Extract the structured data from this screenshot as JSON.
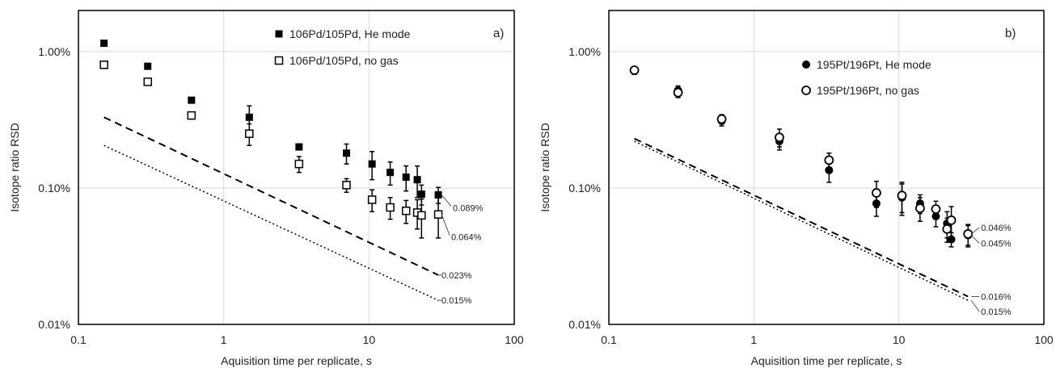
{
  "chart_data": [
    {
      "type": "scatter",
      "panel_label": "a)",
      "xlabel": "Aquisition time per replicate, s",
      "ylabel": "Isotope ratio RSD",
      "x_scale": "log",
      "y_scale": "log",
      "xlim": [
        0.1,
        100
      ],
      "ylim": [
        0.01,
        2.0
      ],
      "x_ticks": [
        0.1,
        1,
        10,
        100
      ],
      "x_tick_labels": [
        "0.1",
        "1",
        "10",
        "100"
      ],
      "y_ticks": [
        0.01,
        0.1,
        1.0
      ],
      "y_tick_labels": [
        "0.01%",
        "0.10%",
        "1.00%"
      ],
      "grid": true,
      "legend_position": "top-right",
      "series": [
        {
          "name": "106Pd/105Pd, He mode",
          "marker": "filled-square",
          "x": [
            0.15,
            0.3,
            0.6,
            1.5,
            3.3,
            7,
            10.5,
            14,
            18,
            21.5,
            23,
            30
          ],
          "y": [
            1.15,
            0.78,
            0.44,
            0.33,
            0.2,
            0.18,
            0.15,
            0.13,
            0.12,
            0.115,
            0.09,
            0.089
          ],
          "err": [
            0.03,
            0.02,
            0.02,
            0.07,
            0.01,
            0.03,
            0.035,
            0.025,
            0.025,
            0.03,
            0.015,
            0.012
          ]
        },
        {
          "name": "106Pd/105Pd, no gas",
          "marker": "open-square",
          "x": [
            0.15,
            0.3,
            0.6,
            1.5,
            3.3,
            7,
            10.5,
            14,
            18,
            21.5,
            23,
            30
          ],
          "y": [
            0.8,
            0.6,
            0.34,
            0.25,
            0.15,
            0.105,
            0.082,
            0.072,
            0.068,
            0.066,
            0.063,
            0.064
          ],
          "err": [
            0.03,
            0.02,
            0.02,
            0.045,
            0.02,
            0.012,
            0.015,
            0.013,
            0.013,
            0.016,
            0.02,
            0.021
          ]
        },
        {
          "name": "",
          "style": "dashed",
          "x": [
            0.15,
            30
          ],
          "y": [
            0.33,
            0.023
          ]
        },
        {
          "name": "",
          "style": "dotted",
          "x": [
            0.15,
            30
          ],
          "y": [
            0.205,
            0.015
          ]
        }
      ],
      "annotations": [
        {
          "text": "0.089%",
          "x": 30,
          "y": 0.089
        },
        {
          "text": "0.064%",
          "x": 30,
          "y": 0.064
        },
        {
          "text": "0.023%",
          "x": 30,
          "y": 0.023
        },
        {
          "text": "0.015%",
          "x": 30,
          "y": 0.015
        }
      ]
    },
    {
      "type": "scatter",
      "panel_label": "b)",
      "xlabel": "Aquisition time per replicate, s",
      "ylabel": "Isotope ratio RSD",
      "x_scale": "log",
      "y_scale": "log",
      "xlim": [
        0.1,
        100
      ],
      "ylim": [
        0.01,
        2.0
      ],
      "x_ticks": [
        0.1,
        1,
        10,
        100
      ],
      "x_tick_labels": [
        "0.1",
        "1",
        "10",
        "100"
      ],
      "y_ticks": [
        0.01,
        0.1,
        1.0
      ],
      "y_tick_labels": [
        "0.01%",
        "0.10%",
        "1.00%"
      ],
      "grid": true,
      "legend_position": "top-right",
      "series": [
        {
          "name": "195Pt/196Pt, He mode",
          "marker": "filled-circle",
          "x": [
            0.15,
            0.3,
            0.6,
            1.5,
            3.3,
            7,
            10.5,
            14,
            18,
            21.5,
            23,
            30
          ],
          "y": [
            0.72,
            0.52,
            0.31,
            0.22,
            0.135,
            0.077,
            0.085,
            0.077,
            0.062,
            0.055,
            0.042,
            0.045
          ],
          "err": [
            0.04,
            0.04,
            0.025,
            0.03,
            0.025,
            0.015,
            0.022,
            0.012,
            0.01,
            0.012,
            0.005,
            0.008
          ]
        },
        {
          "name": "195Pt/196Pt, no gas",
          "marker": "open-circle",
          "x": [
            0.15,
            0.3,
            0.6,
            1.5,
            3.3,
            7,
            10.5,
            14,
            18,
            21.5,
            23,
            30
          ],
          "y": [
            0.73,
            0.5,
            0.32,
            0.235,
            0.16,
            0.092,
            0.088,
            0.071,
            0.07,
            0.05,
            0.058,
            0.046
          ],
          "err": [
            0.04,
            0.04,
            0.025,
            0.035,
            0.02,
            0.02,
            0.022,
            0.014,
            0.01,
            0.01,
            0.015,
            0.008
          ]
        },
        {
          "name": "",
          "style": "dashed",
          "x": [
            0.15,
            30
          ],
          "y": [
            0.23,
            0.016
          ]
        },
        {
          "name": "",
          "style": "dotted",
          "x": [
            0.15,
            30
          ],
          "y": [
            0.22,
            0.015
          ]
        }
      ],
      "annotations": [
        {
          "text": "0.046%",
          "x": 30,
          "y": 0.046
        },
        {
          "text": "0.045%",
          "x": 30,
          "y": 0.045
        },
        {
          "text": "0.016%",
          "x": 30,
          "y": 0.016
        },
        {
          "text": "0.015%",
          "x": 30,
          "y": 0.015
        }
      ]
    }
  ]
}
